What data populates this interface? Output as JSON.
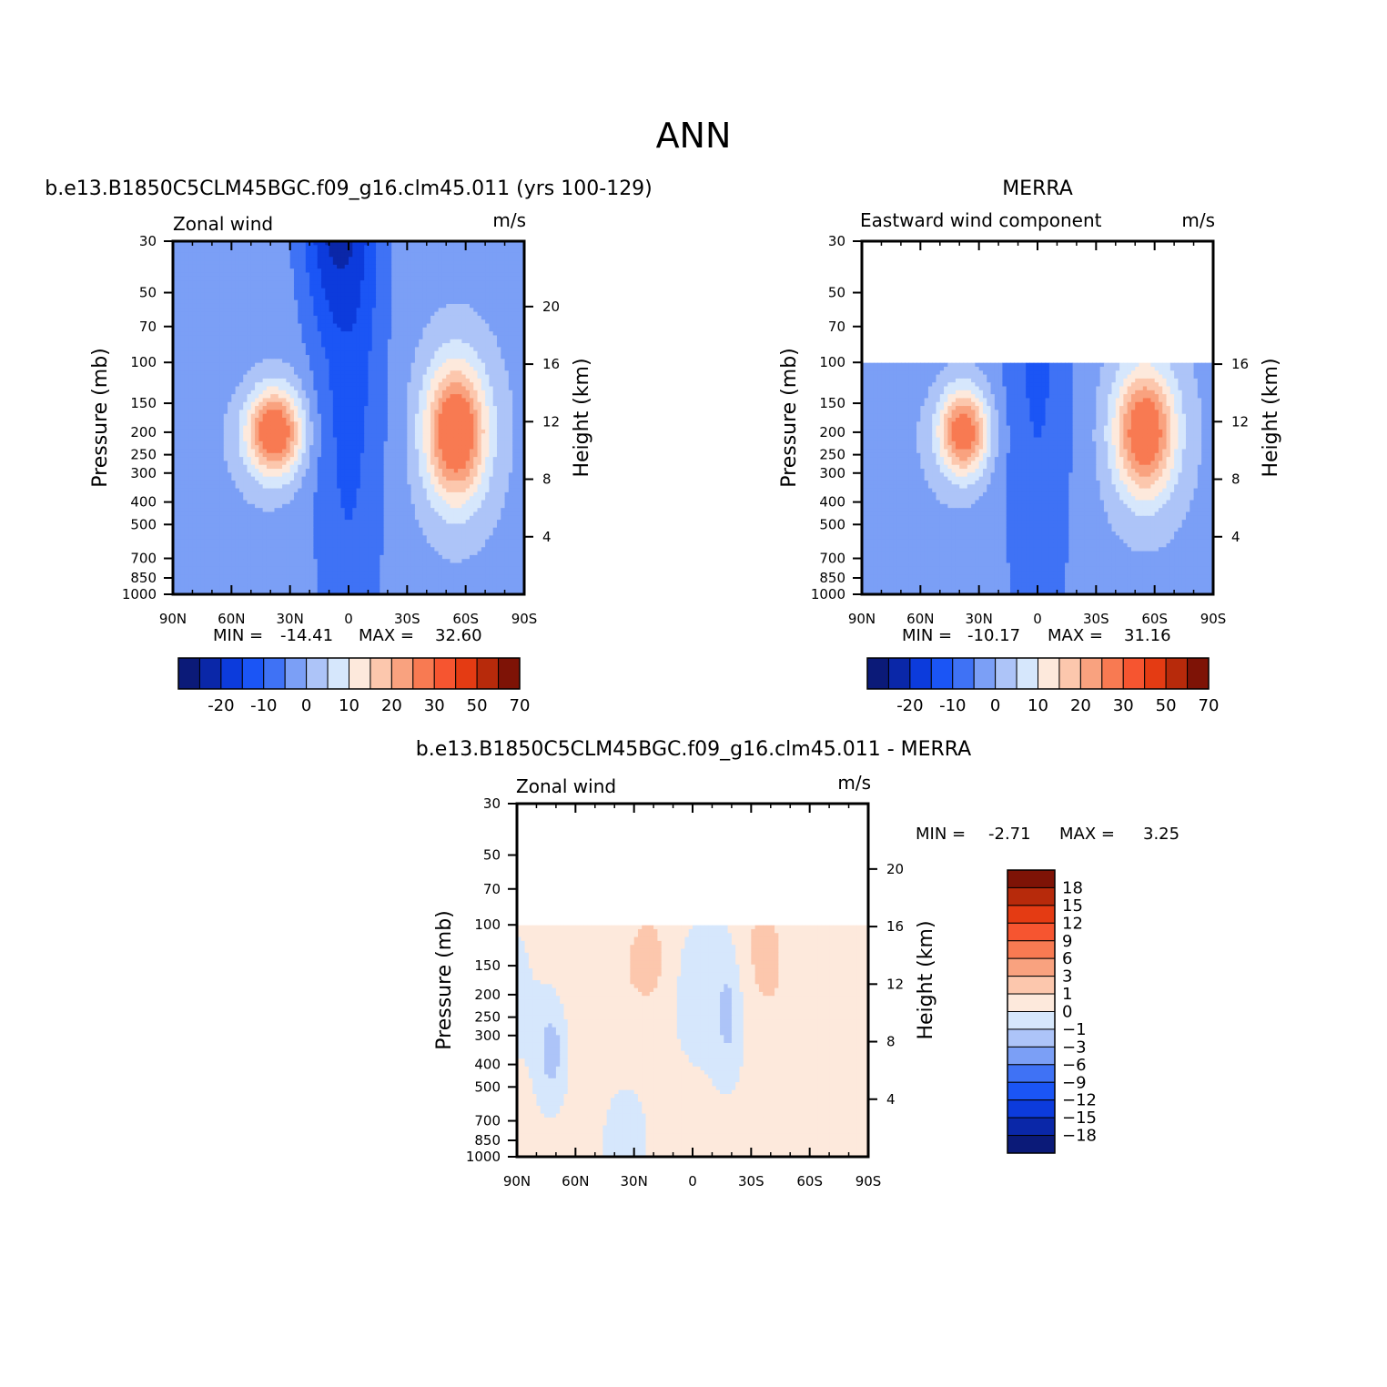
{
  "main_title": "ANN",
  "colors": {
    "full_palette": [
      "#0b1a78",
      "#0a27a8",
      "#0c3bdc",
      "#1b55f5",
      "#3f72f5",
      "#7b9ff6",
      "#adc4f8",
      "#d6e7fc",
      "#fde9dc",
      "#fcc7ad",
      "#f9a27f",
      "#f87a52",
      "#f65530",
      "#e43b13",
      "#b72a0b",
      "#7e1306"
    ],
    "diff_palette": [
      "#0b1a78",
      "#0a27a8",
      "#0c3bdc",
      "#1b55f5",
      "#3f72f5",
      "#7b9ff6",
      "#adc4f8",
      "#d6e7fc",
      "#fde9dc",
      "#fcc7ad",
      "#f9a27f",
      "#f87a52",
      "#f65530",
      "#e43b13",
      "#b72a0b",
      "#7e1306"
    ]
  },
  "chart_data": [
    {
      "type": "heatmap",
      "id": "model",
      "title": "b.e13.B1850C5CLM45BGC.f09_g16.clm45.011 (yrs 100-129)",
      "left_label": "Zonal wind",
      "right_label": "m/s",
      "xlabel": "",
      "ylabel": "Pressure (mb)",
      "ylabel_right": "Height (km)",
      "x_ticks": [
        "90N",
        "60N",
        "30N",
        "0",
        "30S",
        "60S",
        "90S"
      ],
      "y_ticks": [
        30,
        50,
        70,
        100,
        150,
        200,
        250,
        300,
        400,
        500,
        700,
        850,
        1000
      ],
      "y_right_ticks": [
        20,
        16,
        12,
        8,
        4
      ],
      "ylim": [
        1000,
        30
      ],
      "stats": {
        "min_label": "MIN =",
        "min": "-14.41",
        "max_label": "MAX =",
        "max": "32.60"
      },
      "colorbar_labels": [
        "-20",
        "-10",
        "0",
        "10",
        "20",
        "30",
        "50",
        "70"
      ],
      "jets": [
        {
          "lat": -55,
          "sd_lat": 11,
          "p": 200,
          "sd_logp": 0.48,
          "amp": 36
        },
        {
          "lat": 38,
          "sd_lat": 10,
          "p": 200,
          "sd_logp": 0.3,
          "amp": 35
        }
      ],
      "background": 4,
      "equator_dip": -14,
      "data_top_p": 30
    },
    {
      "type": "heatmap",
      "id": "obs",
      "title": "MERRA",
      "left_label": "Eastward wind component",
      "right_label": "m/s",
      "xlabel": "",
      "ylabel": "Pressure (mb)",
      "ylabel_right": "Height (km)",
      "x_ticks": [
        "90N",
        "60N",
        "30N",
        "0",
        "30S",
        "60S",
        "90S"
      ],
      "y_ticks": [
        30,
        50,
        70,
        100,
        150,
        200,
        250,
        300,
        400,
        500,
        700,
        850,
        1000
      ],
      "y_right_ticks": [
        16,
        12,
        8,
        4
      ],
      "ylim": [
        1000,
        30
      ],
      "stats": {
        "min_label": "MIN =",
        "min": "-10.17",
        "max_label": "MAX =",
        "max": "31.16"
      },
      "colorbar_labels": [
        "-20",
        "-10",
        "0",
        "10",
        "20",
        "30",
        "50",
        "70"
      ],
      "jets": [
        {
          "lat": -55,
          "sd_lat": 11,
          "p": 200,
          "sd_logp": 0.45,
          "amp": 34
        },
        {
          "lat": 38,
          "sd_lat": 9,
          "p": 200,
          "sd_logp": 0.3,
          "amp": 32
        }
      ],
      "background": 4,
      "equator_dip": -12,
      "data_top_p": 100
    },
    {
      "type": "heatmap",
      "id": "diff",
      "title": "b.e13.B1850C5CLM45BGC.f09_g16.clm45.011 - MERRA",
      "left_label": "Zonal wind",
      "right_label": "m/s",
      "xlabel": "",
      "ylabel": "Pressure (mb)",
      "ylabel_right": "Height (km)",
      "x_ticks": [
        "90N",
        "60N",
        "30N",
        "0",
        "30S",
        "60S",
        "90S"
      ],
      "y_ticks": [
        30,
        50,
        70,
        100,
        150,
        200,
        250,
        300,
        400,
        500,
        700,
        850,
        1000
      ],
      "y_right_ticks": [
        20,
        16,
        12,
        8,
        4
      ],
      "ylim": [
        1000,
        30
      ],
      "stats": {
        "min_label": "MIN =",
        "min": "-2.71",
        "max_label": "MAX =",
        "max": "3.25"
      },
      "colorbar_labels": [
        "18",
        "15",
        "12",
        "9",
        "6",
        "3",
        "1",
        "0",
        "-1",
        "-3",
        "-6",
        "-9",
        "-12",
        "-15",
        "-18"
      ],
      "data_top_p": 100
    }
  ]
}
